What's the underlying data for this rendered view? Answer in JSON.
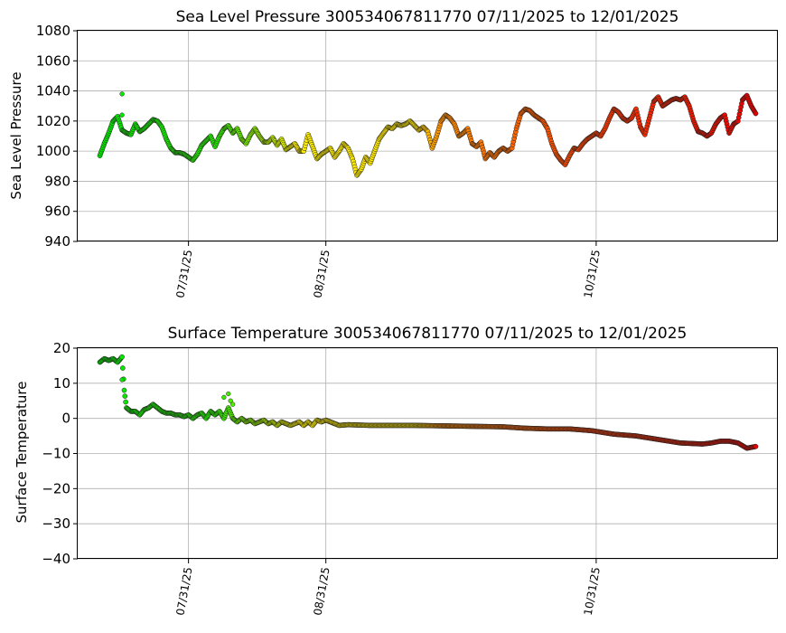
{
  "chart_data": [
    {
      "type": "scatter",
      "title": "Sea Level Pressure 300534067811770  07/11/2025 to 12/01/2025",
      "xlabel": "",
      "ylabel": "Sea Level Pressure",
      "x_range": [
        "2025-07-06",
        "2025-12-11"
      ],
      "ylim": [
        940,
        1080
      ],
      "y_ticks": [
        "940",
        "960",
        "980",
        "1000",
        "1020",
        "1040",
        "1060",
        "1080"
      ],
      "x_ticks": [
        {
          "date": "2025-07-31",
          "label": "07/31/25"
        },
        {
          "date": "2025-08-31",
          "label": "08/31/25"
        },
        {
          "date": "2025-10-31",
          "label": "10/31/25"
        }
      ],
      "grid": true,
      "marker": "small circles, colour shifts green → yellow → orange → red over time",
      "series": [
        {
          "points": [
            [
              "2025-07-11",
              997
            ],
            [
              "2025-07-12",
              1005
            ],
            [
              "2025-07-13",
              1012
            ],
            [
              "2025-07-14",
              1020
            ],
            [
              "2025-07-15",
              1023
            ],
            [
              "2025-07-16",
              1014
            ],
            [
              "2025-07-17",
              1012
            ],
            [
              "2025-07-18",
              1011
            ],
            [
              "2025-07-19",
              1018
            ],
            [
              "2025-07-20",
              1013
            ],
            [
              "2025-07-21",
              1015
            ],
            [
              "2025-07-22",
              1018
            ],
            [
              "2025-07-23",
              1021
            ],
            [
              "2025-07-24",
              1020
            ],
            [
              "2025-07-25",
              1016
            ],
            [
              "2025-07-26",
              1008
            ],
            [
              "2025-07-27",
              1002
            ],
            [
              "2025-07-28",
              999
            ],
            [
              "2025-07-29",
              999
            ],
            [
              "2025-07-30",
              998
            ],
            [
              "2025-07-31",
              996
            ],
            [
              "2025-08-01",
              994
            ],
            [
              "2025-08-02",
              998
            ],
            [
              "2025-08-03",
              1004
            ],
            [
              "2025-08-04",
              1007
            ],
            [
              "2025-08-05",
              1010
            ],
            [
              "2025-08-06",
              1003
            ],
            [
              "2025-08-07",
              1010
            ],
            [
              "2025-08-08",
              1015
            ],
            [
              "2025-08-09",
              1017
            ],
            [
              "2025-08-10",
              1012
            ],
            [
              "2025-08-11",
              1015
            ],
            [
              "2025-08-12",
              1008
            ],
            [
              "2025-08-13",
              1005
            ],
            [
              "2025-08-14",
              1011
            ],
            [
              "2025-08-15",
              1015
            ],
            [
              "2025-08-16",
              1010
            ],
            [
              "2025-08-17",
              1006
            ],
            [
              "2025-08-18",
              1006
            ],
            [
              "2025-08-19",
              1009
            ],
            [
              "2025-08-20",
              1004
            ],
            [
              "2025-08-21",
              1008
            ],
            [
              "2025-08-22",
              1001
            ],
            [
              "2025-08-23",
              1003
            ],
            [
              "2025-08-24",
              1005
            ],
            [
              "2025-08-25",
              1000
            ],
            [
              "2025-08-26",
              1000
            ],
            [
              "2025-08-27",
              1011
            ],
            [
              "2025-08-28",
              1003
            ],
            [
              "2025-08-29",
              995
            ],
            [
              "2025-08-30",
              998
            ],
            [
              "2025-08-31",
              1000
            ],
            [
              "2025-09-01",
              1002
            ],
            [
              "2025-09-02",
              996
            ],
            [
              "2025-09-03",
              1000
            ],
            [
              "2025-09-04",
              1005
            ],
            [
              "2025-09-05",
              1002
            ],
            [
              "2025-09-06",
              995
            ],
            [
              "2025-09-07",
              984
            ],
            [
              "2025-09-08",
              988
            ],
            [
              "2025-09-09",
              996
            ],
            [
              "2025-09-10",
              992
            ],
            [
              "2025-09-11",
              1000
            ],
            [
              "2025-09-12",
              1008
            ],
            [
              "2025-09-13",
              1012
            ],
            [
              "2025-09-14",
              1016
            ],
            [
              "2025-09-15",
              1015
            ],
            [
              "2025-09-16",
              1018
            ],
            [
              "2025-09-17",
              1017
            ],
            [
              "2025-09-18",
              1018
            ],
            [
              "2025-09-19",
              1020
            ],
            [
              "2025-09-20",
              1017
            ],
            [
              "2025-09-21",
              1014
            ],
            [
              "2025-09-22",
              1016
            ],
            [
              "2025-09-23",
              1013
            ],
            [
              "2025-09-24",
              1002
            ],
            [
              "2025-09-25",
              1010
            ],
            [
              "2025-09-26",
              1020
            ],
            [
              "2025-09-27",
              1024
            ],
            [
              "2025-09-28",
              1022
            ],
            [
              "2025-09-29",
              1018
            ],
            [
              "2025-09-30",
              1010
            ],
            [
              "2025-10-01",
              1012
            ],
            [
              "2025-10-02",
              1015
            ],
            [
              "2025-10-03",
              1005
            ],
            [
              "2025-10-04",
              1003
            ],
            [
              "2025-10-05",
              1006
            ],
            [
              "2025-10-06",
              995
            ],
            [
              "2025-10-07",
              999
            ],
            [
              "2025-10-08",
              996
            ],
            [
              "2025-10-09",
              1000
            ],
            [
              "2025-10-10",
              1002
            ],
            [
              "2025-10-11",
              1000
            ],
            [
              "2025-10-12",
              1002
            ],
            [
              "2025-10-13",
              1015
            ],
            [
              "2025-10-14",
              1025
            ],
            [
              "2025-10-15",
              1028
            ],
            [
              "2025-10-16",
              1027
            ],
            [
              "2025-10-17",
              1024
            ],
            [
              "2025-10-18",
              1022
            ],
            [
              "2025-10-19",
              1020
            ],
            [
              "2025-10-20",
              1015
            ],
            [
              "2025-10-21",
              1005
            ],
            [
              "2025-10-22",
              998
            ],
            [
              "2025-10-23",
              994
            ],
            [
              "2025-10-24",
              991
            ],
            [
              "2025-10-25",
              997
            ],
            [
              "2025-10-26",
              1002
            ],
            [
              "2025-10-27",
              1001
            ],
            [
              "2025-10-28",
              1005
            ],
            [
              "2025-10-29",
              1008
            ],
            [
              "2025-10-30",
              1010
            ],
            [
              "2025-10-31",
              1012
            ],
            [
              "2025-11-01",
              1010
            ],
            [
              "2025-11-02",
              1015
            ],
            [
              "2025-11-03",
              1022
            ],
            [
              "2025-11-04",
              1028
            ],
            [
              "2025-11-05",
              1026
            ],
            [
              "2025-11-06",
              1022
            ],
            [
              "2025-11-07",
              1020
            ],
            [
              "2025-11-08",
              1022
            ],
            [
              "2025-11-09",
              1028
            ],
            [
              "2025-11-10",
              1016
            ],
            [
              "2025-11-11",
              1011
            ],
            [
              "2025-11-12",
              1022
            ],
            [
              "2025-11-13",
              1033
            ],
            [
              "2025-11-14",
              1036
            ],
            [
              "2025-11-15",
              1030
            ],
            [
              "2025-11-16",
              1032
            ],
            [
              "2025-11-17",
              1034
            ],
            [
              "2025-11-18",
              1035
            ],
            [
              "2025-11-19",
              1034
            ],
            [
              "2025-11-20",
              1036
            ],
            [
              "2025-11-21",
              1030
            ],
            [
              "2025-11-22",
              1020
            ],
            [
              "2025-11-23",
              1013
            ],
            [
              "2025-11-24",
              1012
            ],
            [
              "2025-11-25",
              1010
            ],
            [
              "2025-11-26",
              1012
            ],
            [
              "2025-11-27",
              1018
            ],
            [
              "2025-11-28",
              1022
            ],
            [
              "2025-11-29",
              1024
            ],
            [
              "2025-11-30",
              1012
            ],
            [
              "2025-12-01",
              1018
            ],
            [
              "2025-12-02",
              1020
            ],
            [
              "2025-12-03",
              1034
            ],
            [
              "2025-12-04",
              1037
            ],
            [
              "2025-12-05",
              1030
            ],
            [
              "2025-12-06",
              1025
            ]
          ],
          "outliers": [
            [
              "2025-07-16",
              1038
            ],
            [
              "2025-07-16",
              1024
            ]
          ]
        }
      ]
    },
    {
      "type": "scatter",
      "title": "Surface Temperature 300534067811770  07/11/2025 to 12/01/2025",
      "xlabel": "",
      "ylabel": "Surface Temperature",
      "x_range": [
        "2025-07-06",
        "2025-12-11"
      ],
      "ylim": [
        -40,
        20
      ],
      "y_ticks": [
        "−40",
        "−30",
        "−20",
        "−10",
        "0",
        "10",
        "20"
      ],
      "x_ticks": [
        {
          "date": "2025-07-31",
          "label": "07/31/25"
        },
        {
          "date": "2025-08-31",
          "label": "08/31/25"
        },
        {
          "date": "2025-10-31",
          "label": "10/31/25"
        }
      ],
      "grid": true,
      "marker": "small circles, colour shifts green → yellow → orange → red over time",
      "series": [
        {
          "points": [
            [
              "2025-07-11",
              16
            ],
            [
              "2025-07-12",
              17
            ],
            [
              "2025-07-13",
              16.5
            ],
            [
              "2025-07-14",
              17
            ],
            [
              "2025-07-15",
              16
            ],
            [
              "2025-07-16",
              17.5
            ],
            [
              "2025-07-16.5",
              8
            ],
            [
              "2025-07-17",
              3
            ],
            [
              "2025-07-18",
              2
            ],
            [
              "2025-07-19",
              2
            ],
            [
              "2025-07-20",
              1
            ],
            [
              "2025-07-21",
              2.5
            ],
            [
              "2025-07-22",
              3
            ],
            [
              "2025-07-23",
              4
            ],
            [
              "2025-07-24",
              3
            ],
            [
              "2025-07-25",
              2
            ],
            [
              "2025-07-26",
              1.5
            ],
            [
              "2025-07-27",
              1.5
            ],
            [
              "2025-07-28",
              1
            ],
            [
              "2025-07-29",
              1
            ],
            [
              "2025-07-30",
              0.5
            ],
            [
              "2025-07-31",
              1
            ],
            [
              "2025-08-01",
              0
            ],
            [
              "2025-08-02",
              1
            ],
            [
              "2025-08-03",
              1.5
            ],
            [
              "2025-08-04",
              0
            ],
            [
              "2025-08-05",
              2
            ],
            [
              "2025-08-06",
              1
            ],
            [
              "2025-08-07",
              2
            ],
            [
              "2025-08-08",
              0
            ],
            [
              "2025-08-09",
              3
            ],
            [
              "2025-08-10",
              0
            ],
            [
              "2025-08-11",
              -1
            ],
            [
              "2025-08-12",
              0
            ],
            [
              "2025-08-13",
              -1
            ],
            [
              "2025-08-14",
              -0.5
            ],
            [
              "2025-08-15",
              -1.5
            ],
            [
              "2025-08-16",
              -1
            ],
            [
              "2025-08-17",
              -0.5
            ],
            [
              "2025-08-18",
              -1.5
            ],
            [
              "2025-08-19",
              -1
            ],
            [
              "2025-08-20",
              -2
            ],
            [
              "2025-08-21",
              -1
            ],
            [
              "2025-08-22",
              -1.5
            ],
            [
              "2025-08-23",
              -2
            ],
            [
              "2025-08-24",
              -1.5
            ],
            [
              "2025-08-25",
              -1
            ],
            [
              "2025-08-26",
              -2
            ],
            [
              "2025-08-27",
              -1
            ],
            [
              "2025-08-28",
              -2
            ],
            [
              "2025-08-29",
              -0.5
            ],
            [
              "2025-08-30",
              -1
            ],
            [
              "2025-08-31",
              -0.5
            ],
            [
              "2025-09-01",
              -1
            ],
            [
              "2025-09-02",
              -1.5
            ],
            [
              "2025-09-03",
              -2
            ],
            [
              "2025-09-05",
              -1.8
            ],
            [
              "2025-09-10",
              -2
            ],
            [
              "2025-09-15",
              -2
            ],
            [
              "2025-09-20",
              -2
            ],
            [
              "2025-09-25",
              -2.1
            ],
            [
              "2025-09-30",
              -2.2
            ],
            [
              "2025-10-05",
              -2.3
            ],
            [
              "2025-10-10",
              -2.4
            ],
            [
              "2025-10-15",
              -2.8
            ],
            [
              "2025-10-20",
              -3
            ],
            [
              "2025-10-25",
              -3
            ],
            [
              "2025-10-30",
              -3.5
            ],
            [
              "2025-11-04",
              -4.5
            ],
            [
              "2025-11-09",
              -5
            ],
            [
              "2025-11-14",
              -6
            ],
            [
              "2025-11-19",
              -7
            ],
            [
              "2025-11-24",
              -7.3
            ],
            [
              "2025-11-26",
              -7
            ],
            [
              "2025-11-28",
              -6.5
            ],
            [
              "2025-11-30",
              -6.5
            ],
            [
              "2025-12-02",
              -7
            ],
            [
              "2025-12-04",
              -8.5
            ],
            [
              "2025-12-06",
              -8
            ]
          ],
          "outliers": [
            [
              "2025-07-16",
              11
            ],
            [
              "2025-08-08",
              6
            ],
            [
              "2025-08-09",
              7
            ],
            [
              "2025-08-10",
              4
            ],
            [
              "2025-08-09.5",
              5
            ]
          ]
        }
      ]
    }
  ]
}
